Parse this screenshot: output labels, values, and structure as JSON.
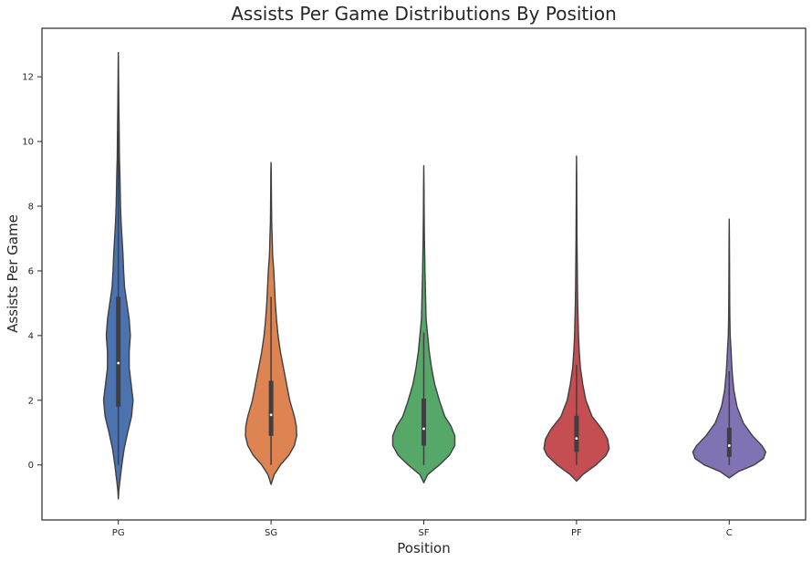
{
  "chart_data": {
    "type": "violin",
    "title": "Assists Per Game Distributions By Position",
    "xlabel": "Position",
    "ylabel": "Assists Per Game",
    "categories": [
      "PG",
      "SG",
      "SF",
      "PF",
      "C"
    ],
    "ylim": [
      -1.7,
      13.5
    ],
    "yticks": [
      0,
      2,
      4,
      6,
      8,
      10,
      12
    ],
    "grid": false,
    "legend": "none",
    "colors": [
      "#4c72b0",
      "#dd8452",
      "#55a868",
      "#c44e52",
      "#8172b3"
    ],
    "edge_color": "#3f3f3f",
    "violins": [
      {
        "category": "PG",
        "whisker_low": 0.0,
        "q1": 1.8,
        "median": 3.15,
        "q3": 5.2,
        "whisker_high": 10.3,
        "profile": [
          [
            -1.05,
            0.0
          ],
          [
            -0.8,
            0.006
          ],
          [
            -0.5,
            0.02
          ],
          [
            0,
            0.045
          ],
          [
            0.5,
            0.075
          ],
          [
            1,
            0.12
          ],
          [
            1.5,
            0.17
          ],
          [
            2,
            0.19
          ],
          [
            2.5,
            0.165
          ],
          [
            3,
            0.14
          ],
          [
            3.5,
            0.14
          ],
          [
            4,
            0.155
          ],
          [
            4.5,
            0.14
          ],
          [
            5,
            0.11
          ],
          [
            5.5,
            0.08
          ],
          [
            6,
            0.068
          ],
          [
            6.5,
            0.06
          ],
          [
            7,
            0.048
          ],
          [
            7.5,
            0.036
          ],
          [
            8,
            0.028
          ],
          [
            8.5,
            0.024
          ],
          [
            9,
            0.02
          ],
          [
            9.5,
            0.014
          ],
          [
            10,
            0.012
          ],
          [
            10.5,
            0.01
          ],
          [
            11,
            0.007
          ],
          [
            11.5,
            0.005
          ],
          [
            12,
            0.003
          ],
          [
            12.4,
            0.002
          ],
          [
            12.75,
            0.0
          ]
        ]
      },
      {
        "category": "SG",
        "whisker_low": 0.0,
        "q1": 0.9,
        "median": 1.55,
        "q3": 2.6,
        "whisker_high": 5.2,
        "profile": [
          [
            -0.6,
            0.0
          ],
          [
            -0.3,
            0.04
          ],
          [
            0,
            0.12
          ],
          [
            0.3,
            0.23
          ],
          [
            0.6,
            0.3
          ],
          [
            0.9,
            0.33
          ],
          [
            1.2,
            0.325
          ],
          [
            1.5,
            0.3
          ],
          [
            2,
            0.24
          ],
          [
            2.5,
            0.2
          ],
          [
            3,
            0.16
          ],
          [
            3.5,
            0.12
          ],
          [
            4,
            0.09
          ],
          [
            4.5,
            0.07
          ],
          [
            5,
            0.055
          ],
          [
            5.5,
            0.045
          ],
          [
            6,
            0.035
          ],
          [
            6.5,
            0.02
          ],
          [
            7,
            0.015
          ],
          [
            7.5,
            0.008
          ],
          [
            8,
            0.006
          ],
          [
            8.5,
            0.004
          ],
          [
            9,
            0.003
          ],
          [
            9.35,
            0.0
          ]
        ]
      },
      {
        "category": "SF",
        "whisker_low": 0.0,
        "q1": 0.6,
        "median": 1.12,
        "q3": 2.05,
        "whisker_high": 4.1,
        "profile": [
          [
            -0.55,
            0.0
          ],
          [
            -0.3,
            0.05
          ],
          [
            0,
            0.2
          ],
          [
            0.3,
            0.33
          ],
          [
            0.6,
            0.4
          ],
          [
            0.9,
            0.4
          ],
          [
            1.2,
            0.35
          ],
          [
            1.5,
            0.27
          ],
          [
            2,
            0.2
          ],
          [
            2.5,
            0.14
          ],
          [
            3,
            0.1
          ],
          [
            3.5,
            0.07
          ],
          [
            4,
            0.05
          ],
          [
            4.5,
            0.03
          ],
          [
            5,
            0.025
          ],
          [
            5.5,
            0.02
          ],
          [
            6,
            0.015
          ],
          [
            6.5,
            0.012
          ],
          [
            7,
            0.008
          ],
          [
            7.5,
            0.006
          ],
          [
            8,
            0.004
          ],
          [
            8.5,
            0.003
          ],
          [
            9.25,
            0.0
          ]
        ]
      },
      {
        "category": "PF",
        "whisker_low": 0.0,
        "q1": 0.4,
        "median": 0.82,
        "q3": 1.52,
        "whisker_high": 3.1,
        "profile": [
          [
            -0.5,
            0.0
          ],
          [
            -0.3,
            0.08
          ],
          [
            0,
            0.25
          ],
          [
            0.3,
            0.38
          ],
          [
            0.5,
            0.42
          ],
          [
            0.8,
            0.4
          ],
          [
            1.1,
            0.33
          ],
          [
            1.5,
            0.2
          ],
          [
            2,
            0.12
          ],
          [
            2.5,
            0.08
          ],
          [
            3,
            0.05
          ],
          [
            3.5,
            0.035
          ],
          [
            4,
            0.025
          ],
          [
            4.5,
            0.02
          ],
          [
            5,
            0.015
          ],
          [
            5.5,
            0.012
          ],
          [
            6,
            0.01
          ],
          [
            6.5,
            0.008
          ],
          [
            7,
            0.006
          ],
          [
            7.5,
            0.005
          ],
          [
            8,
            0.004
          ],
          [
            9,
            0.002
          ],
          [
            9.55,
            0.0
          ]
        ]
      },
      {
        "category": "C",
        "whisker_low": 0.0,
        "q1": 0.25,
        "median": 0.6,
        "q3": 1.15,
        "whisker_high": 2.9,
        "profile": [
          [
            -0.4,
            0.0
          ],
          [
            -0.2,
            0.12
          ],
          [
            0,
            0.32
          ],
          [
            0.2,
            0.44
          ],
          [
            0.4,
            0.47
          ],
          [
            0.6,
            0.42
          ],
          [
            0.9,
            0.3
          ],
          [
            1.3,
            0.18
          ],
          [
            1.8,
            0.1
          ],
          [
            2.3,
            0.06
          ],
          [
            2.8,
            0.04
          ],
          [
            3.2,
            0.03
          ],
          [
            3.6,
            0.022
          ],
          [
            4,
            0.012
          ],
          [
            4.5,
            0.008
          ],
          [
            5,
            0.006
          ],
          [
            5.5,
            0.005
          ],
          [
            6,
            0.004
          ],
          [
            6.5,
            0.003
          ],
          [
            7,
            0.002
          ],
          [
            7.6,
            0.0
          ]
        ]
      }
    ]
  }
}
